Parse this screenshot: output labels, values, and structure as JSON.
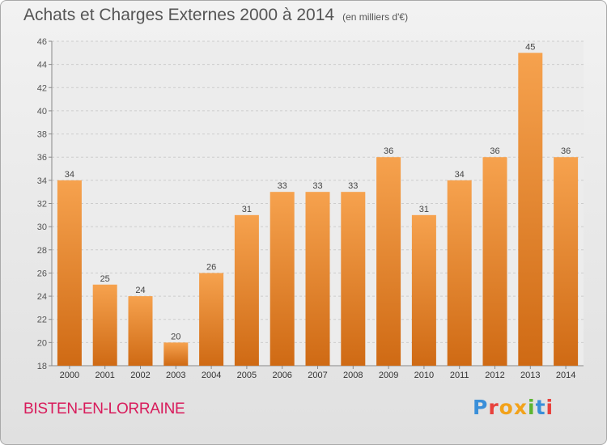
{
  "header": {
    "title": "Achats et Charges Externes 2000 à 2014",
    "unit": "(en milliers d'€)"
  },
  "footer": {
    "commune": "BISTEN-EN-LORRAINE",
    "logo": {
      "letters": [
        "P",
        "r",
        "o",
        "x",
        "i",
        "t",
        "i"
      ],
      "colors": [
        "#3a8fd9",
        "#e8413c",
        "#f2a21a",
        "#f2a21a",
        "#5cb531",
        "#3a8fd9",
        "#e8413c"
      ]
    }
  },
  "colors": {
    "bar_top": "#f6a24e",
    "bar_bottom": "#cf6a14",
    "commune": "#d81b5b",
    "text": "#555555"
  },
  "chart_data": {
    "type": "bar",
    "categories": [
      "2000",
      "2001",
      "2002",
      "2003",
      "2004",
      "2005",
      "2006",
      "2007",
      "2008",
      "2009",
      "2010",
      "2011",
      "2012",
      "2013",
      "2014"
    ],
    "values": [
      34,
      25,
      24,
      20,
      26,
      31,
      33,
      33,
      33,
      36,
      31,
      34,
      36,
      45,
      36
    ],
    "ylim": [
      18,
      46
    ],
    "yticks": [
      18,
      20,
      22,
      24,
      26,
      28,
      30,
      32,
      34,
      36,
      38,
      40,
      42,
      44,
      46
    ],
    "grid": true,
    "data_labels": true
  }
}
